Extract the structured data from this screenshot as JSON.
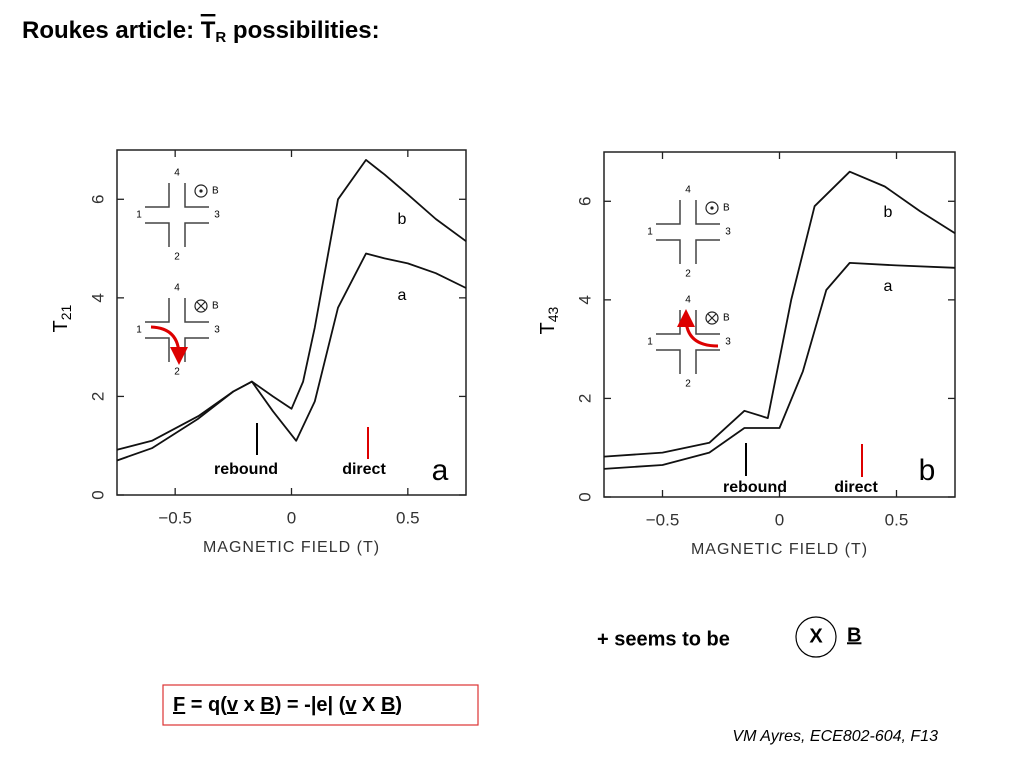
{
  "slide": {
    "title": {
      "before": "Roukes article: ",
      "symbol": "T",
      "subscript": "R",
      "after": " possibilities:"
    },
    "note": "+ seems to be",
    "operator": "X",
    "vector": "B",
    "formula": [
      {
        "text": "F",
        "underline": true
      },
      {
        "text": " = q(",
        "underline": false
      },
      {
        "text": "v",
        "underline": true
      },
      {
        "text": " x ",
        "underline": false
      },
      {
        "text": "B",
        "underline": true
      },
      {
        "text": ") = -|e| (",
        "underline": false
      },
      {
        "text": "v",
        "underline": true
      },
      {
        "text": " X ",
        "underline": false
      },
      {
        "text": "B",
        "underline": true
      },
      {
        "text": ")",
        "underline": false
      }
    ],
    "footer": "VM Ayres, ECE802-604, F13"
  },
  "chart_data": [
    {
      "type": "line",
      "ylabel": "T",
      "ylabel_subscript": "21",
      "xlabel": "MAGNETIC FIELD (T)",
      "panel": "a",
      "xlim": [
        -0.75,
        0.75
      ],
      "ylim": [
        0,
        7
      ],
      "xticks": [
        {
          "value": -0.5,
          "label": "−0.5"
        },
        0,
        0.5
      ],
      "yticks": [
        0,
        2,
        4,
        6
      ],
      "annotations": [
        "rebound",
        "direct"
      ],
      "inset": {
        "terminals": [
          "1",
          "2",
          "3",
          "4"
        ],
        "field": "B"
      },
      "series": [
        {
          "name": "b",
          "color": "#111",
          "x": [
            -0.75,
            -0.6,
            -0.4,
            -0.25,
            -0.17,
            -0.08,
            0,
            0.05,
            0.1,
            0.2,
            0.32,
            0.4,
            0.5,
            0.62,
            0.75
          ],
          "values": [
            0.92,
            1.1,
            1.6,
            2.1,
            2.3,
            2.0,
            1.75,
            2.3,
            3.4,
            6.0,
            6.8,
            6.5,
            6.1,
            5.6,
            5.15
          ]
        },
        {
          "name": "a",
          "color": "#111",
          "x": [
            -0.75,
            -0.6,
            -0.4,
            -0.25,
            -0.17,
            -0.08,
            0.02,
            0.1,
            0.2,
            0.32,
            0.4,
            0.5,
            0.62,
            0.75
          ],
          "values": [
            0.7,
            0.95,
            1.55,
            2.1,
            2.3,
            1.7,
            1.1,
            1.9,
            3.8,
            4.9,
            4.8,
            4.7,
            4.5,
            4.2
          ]
        }
      ]
    },
    {
      "type": "line",
      "ylabel": "T",
      "ylabel_subscript": "43",
      "xlabel": "MAGNETIC FIELD (T)",
      "panel": "b",
      "xlim": [
        -0.75,
        0.75
      ],
      "ylim": [
        0,
        7
      ],
      "xticks": [
        {
          "value": -0.5,
          "label": "−0.5"
        },
        0,
        0.5
      ],
      "yticks": [
        0,
        2,
        4,
        6
      ],
      "annotations": [
        "rebound",
        "direct"
      ],
      "inset": {
        "terminals": [
          "1",
          "2",
          "3",
          "4"
        ],
        "field": "B"
      },
      "series": [
        {
          "name": "b",
          "color": "#111",
          "x": [
            -0.75,
            -0.5,
            -0.3,
            -0.15,
            -0.05,
            0.05,
            0.15,
            0.3,
            0.45,
            0.6,
            0.75
          ],
          "values": [
            0.82,
            0.9,
            1.1,
            1.75,
            1.6,
            4.0,
            5.9,
            6.6,
            6.3,
            5.8,
            5.35
          ]
        },
        {
          "name": "a",
          "color": "#111",
          "x": [
            -0.75,
            -0.5,
            -0.3,
            -0.15,
            0,
            0.1,
            0.2,
            0.3,
            0.5,
            0.75
          ],
          "values": [
            0.57,
            0.65,
            0.9,
            1.4,
            1.4,
            2.55,
            4.2,
            4.75,
            4.7,
            4.65
          ]
        }
      ]
    }
  ]
}
